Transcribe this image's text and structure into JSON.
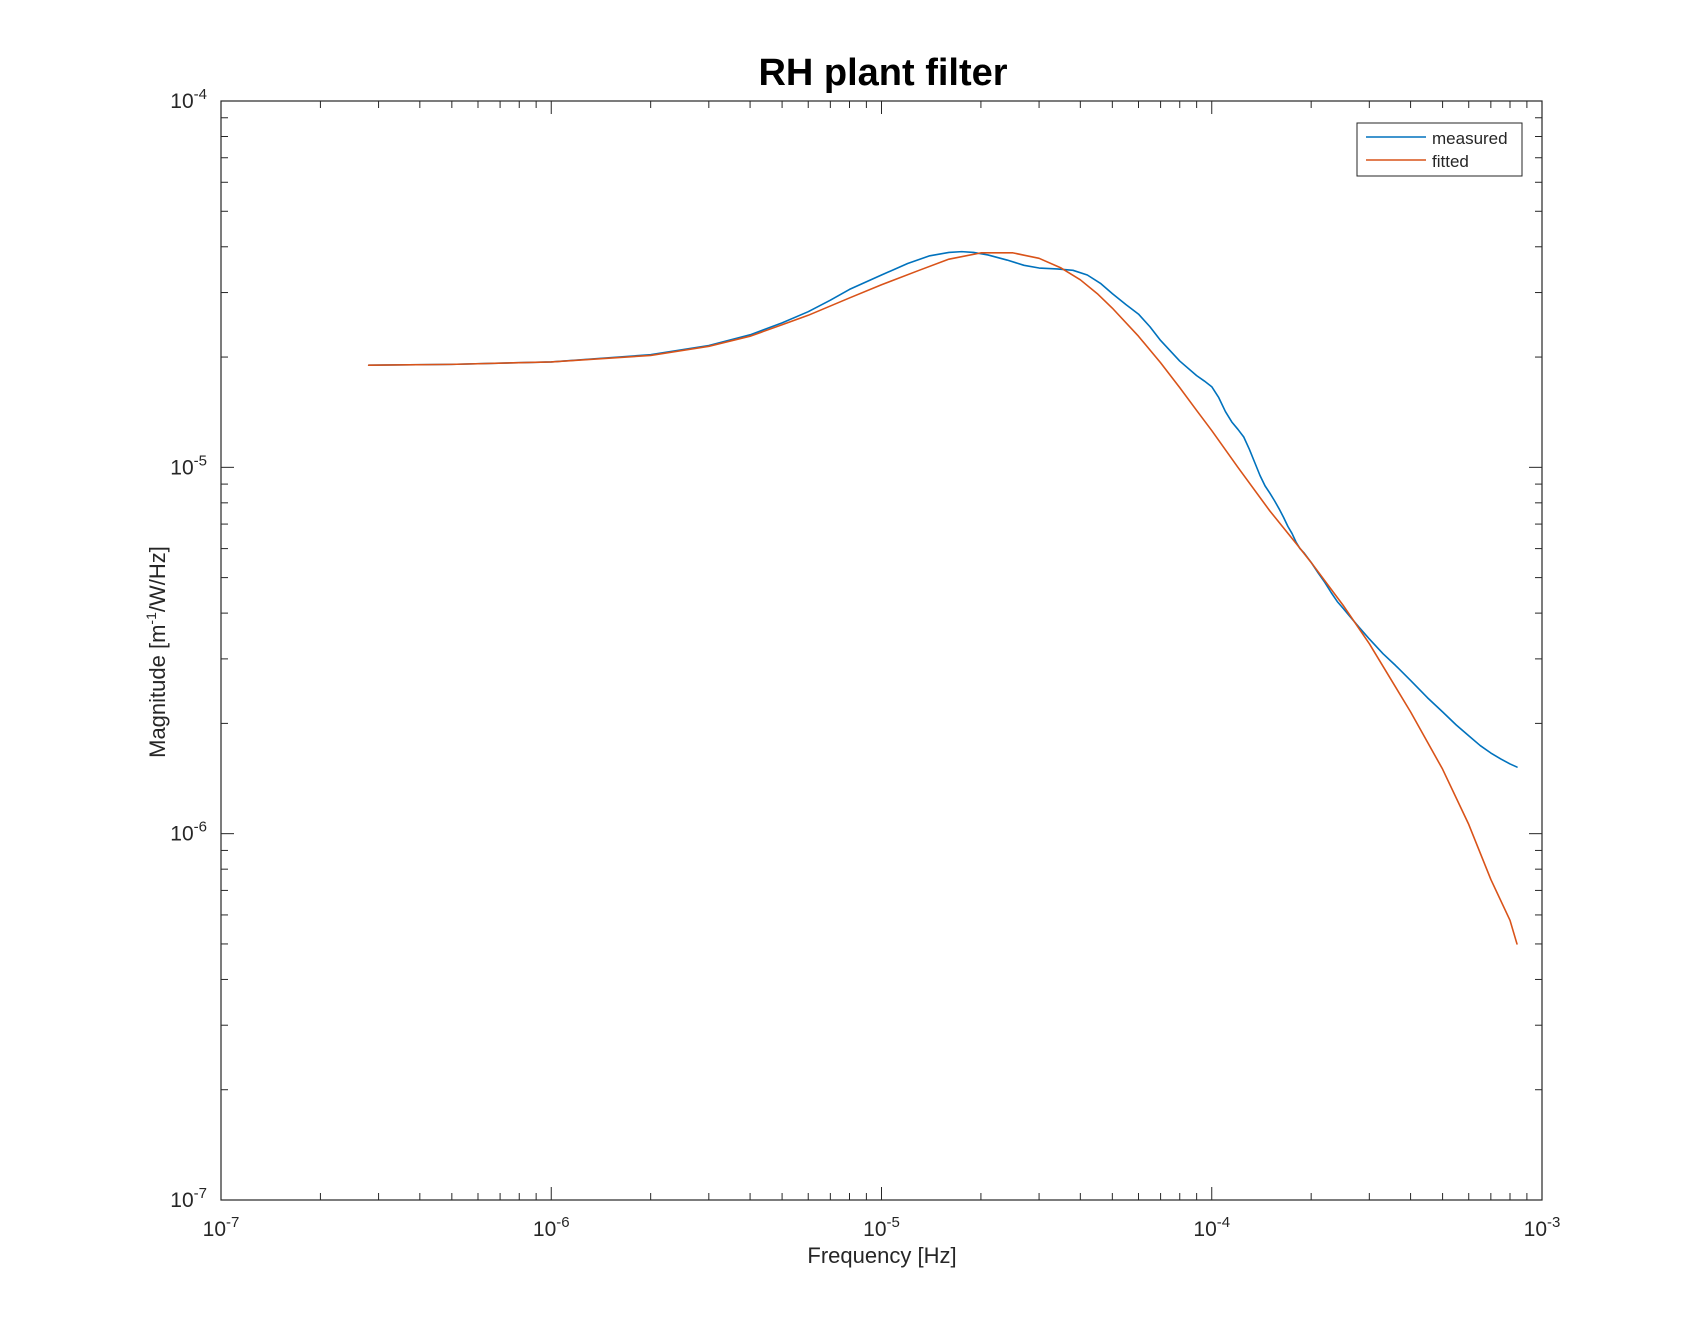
{
  "chart_data": {
    "type": "line",
    "title": "RH plant filter",
    "xlabel": "Frequency [Hz]",
    "ylabel": {
      "base": "Magnitude [m",
      "sup": "-1",
      "rest": "/W/Hz]"
    },
    "xscale": "log",
    "yscale": "log",
    "xlim": [
      1e-07,
      0.001
    ],
    "ylim": [
      1e-07,
      0.0001
    ],
    "x_ticks": [
      {
        "value": 1e-07,
        "base": "10",
        "exp": "-7"
      },
      {
        "value": 1e-06,
        "base": "10",
        "exp": "-6"
      },
      {
        "value": 1e-05,
        "base": "10",
        "exp": "-5"
      },
      {
        "value": 0.0001,
        "base": "10",
        "exp": "-4"
      },
      {
        "value": 0.001,
        "base": "10",
        "exp": "-3"
      }
    ],
    "y_ticks": [
      {
        "value": 1e-07,
        "base": "10",
        "exp": "-7"
      },
      {
        "value": 1e-06,
        "base": "10",
        "exp": "-6"
      },
      {
        "value": 1e-05,
        "base": "10",
        "exp": "-5"
      },
      {
        "value": 0.0001,
        "base": "10",
        "exp": "-4"
      }
    ],
    "grid": false,
    "box": true,
    "legend_position": "top-right",
    "series": [
      {
        "name": "measured",
        "color": "#0072bd",
        "x": [
          2.8e-07,
          5e-07,
          1e-06,
          2e-06,
          3e-06,
          4e-06,
          5e-06,
          6e-06,
          7e-06,
          8e-06,
          1e-05,
          1.2e-05,
          1.4e-05,
          1.6e-05,
          1.75e-05,
          1.9e-05,
          2.1e-05,
          2.4e-05,
          2.7e-05,
          3e-05,
          3.4e-05,
          3.8e-05,
          4.2e-05,
          4.6e-05,
          5e-05,
          5.5e-05,
          6e-05,
          6.5e-05,
          7e-05,
          8e-05,
          9e-05,
          9.5e-05,
          0.0001,
          0.000105,
          0.00011,
          0.000115,
          0.00012,
          0.000125,
          0.00013,
          0.000135,
          0.00014,
          0.000145,
          0.00015,
          0.000155,
          0.00016,
          0.000165,
          0.00017,
          0.000175,
          0.00018,
          0.000185,
          0.00019,
          0.0002,
          0.00021,
          0.00022,
          0.00023,
          0.00024,
          0.00025,
          0.00026,
          0.00028,
          0.0003,
          0.00033,
          0.00036,
          0.0004,
          0.00045,
          0.0005,
          0.00055,
          0.0006,
          0.00065,
          0.0007,
          0.00075,
          0.0008,
          0.00084
        ],
        "y": [
          1.9e-05,
          1.91e-05,
          1.94e-05,
          2.03e-05,
          2.15e-05,
          2.3e-05,
          2.48e-05,
          2.66e-05,
          2.86e-05,
          3.06e-05,
          3.35e-05,
          3.6e-05,
          3.78e-05,
          3.86e-05,
          3.88e-05,
          3.86e-05,
          3.8e-05,
          3.68e-05,
          3.56e-05,
          3.5e-05,
          3.48e-05,
          3.45e-05,
          3.35e-05,
          3.18e-05,
          2.98e-05,
          2.78e-05,
          2.62e-05,
          2.42e-05,
          2.22e-05,
          1.95e-05,
          1.78e-05,
          1.72e-05,
          1.66e-05,
          1.55e-05,
          1.42e-05,
          1.33e-05,
          1.27e-05,
          1.21e-05,
          1.12e-05,
          1.03e-05,
          9.5e-06,
          8.9e-06,
          8.5e-06,
          8.1e-06,
          7.7e-06,
          7.3e-06,
          6.9e-06,
          6.6e-06,
          6.25e-06,
          6e-06,
          5.85e-06,
          5.5e-06,
          5.15e-06,
          4.85e-06,
          4.55e-06,
          4.3e-06,
          4.12e-06,
          3.95e-06,
          3.65e-06,
          3.4e-06,
          3.1e-06,
          2.88e-06,
          2.62e-06,
          2.35e-06,
          2.15e-06,
          1.98e-06,
          1.85e-06,
          1.74e-06,
          1.66e-06,
          1.6e-06,
          1.55e-06,
          1.52e-06
        ]
      },
      {
        "name": "fitted",
        "color": "#d95319",
        "x": [
          2.8e-07,
          5e-07,
          1e-06,
          2e-06,
          3e-06,
          4e-06,
          5e-06,
          6e-06,
          8e-06,
          1e-05,
          1.3e-05,
          1.6e-05,
          2e-05,
          2.5e-05,
          3e-05,
          3.5e-05,
          4e-05,
          4.5e-05,
          5e-05,
          6e-05,
          7e-05,
          8e-05,
          9e-05,
          0.0001,
          0.00012,
          0.00015,
          0.00018,
          0.0002,
          0.00025,
          0.0003,
          0.0004,
          0.0005,
          0.0006,
          0.0007,
          0.0008,
          0.00084
        ],
        "y": [
          1.9e-05,
          1.91e-05,
          1.94e-05,
          2.02e-05,
          2.14e-05,
          2.28e-05,
          2.45e-05,
          2.6e-05,
          2.9e-05,
          3.15e-05,
          3.45e-05,
          3.7e-05,
          3.85e-05,
          3.85e-05,
          3.72e-05,
          3.5e-05,
          3.25e-05,
          2.98e-05,
          2.72e-05,
          2.28e-05,
          1.93e-05,
          1.65e-05,
          1.43e-05,
          1.26e-05,
          1e-05,
          7.6e-06,
          6.2e-06,
          5.5e-06,
          4.2e-06,
          3.3e-06,
          2.15e-06,
          1.5e-06,
          1.06e-06,
          7.5e-07,
          5.8e-07,
          5e-07
        ]
      }
    ]
  }
}
